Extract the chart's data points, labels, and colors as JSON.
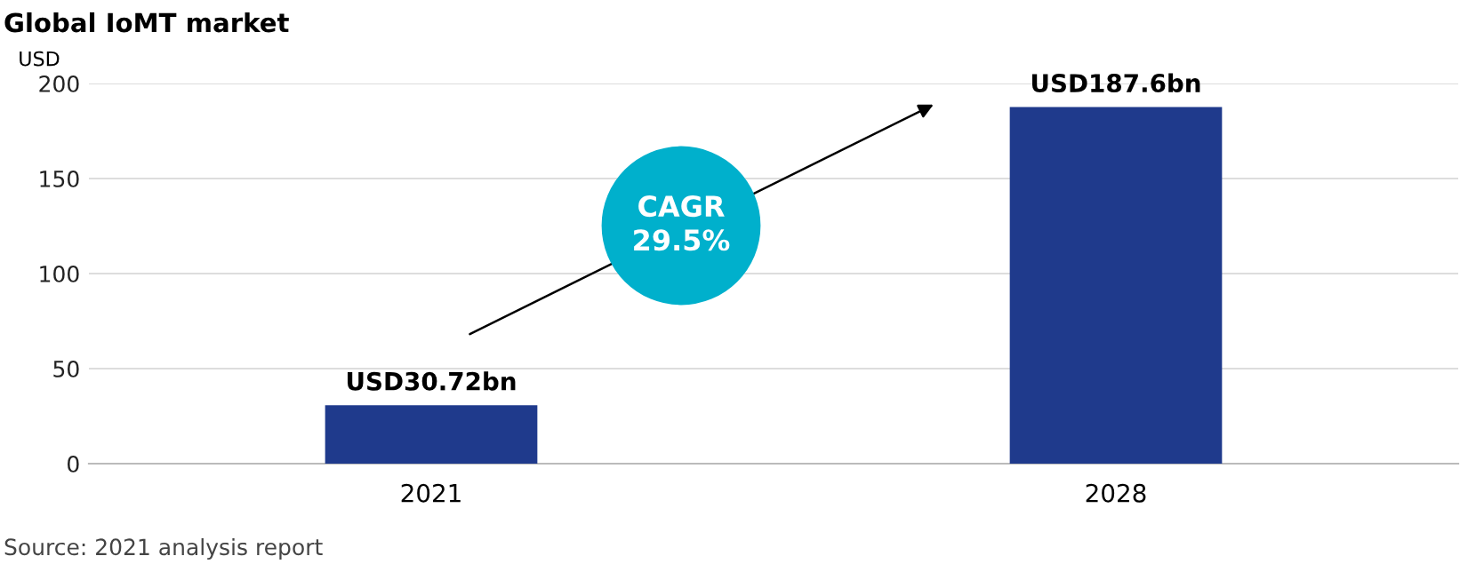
{
  "chart_data": {
    "type": "bar",
    "title": "Global IoMT market",
    "ylabel": "USD",
    "categories": [
      "2021",
      "2028"
    ],
    "values": [
      30.72,
      187.6
    ],
    "color": "#1f3a8c",
    "value_labels": [
      "USD30.72bn",
      "USD187.6bn"
    ],
    "ylim": [
      0,
      200
    ],
    "yticks": [
      0,
      50,
      100,
      150,
      200
    ],
    "grid": "y",
    "annotations": [
      "CAGR\n29.5%",
      "Source: 2021 analysis report"
    ]
  }
}
